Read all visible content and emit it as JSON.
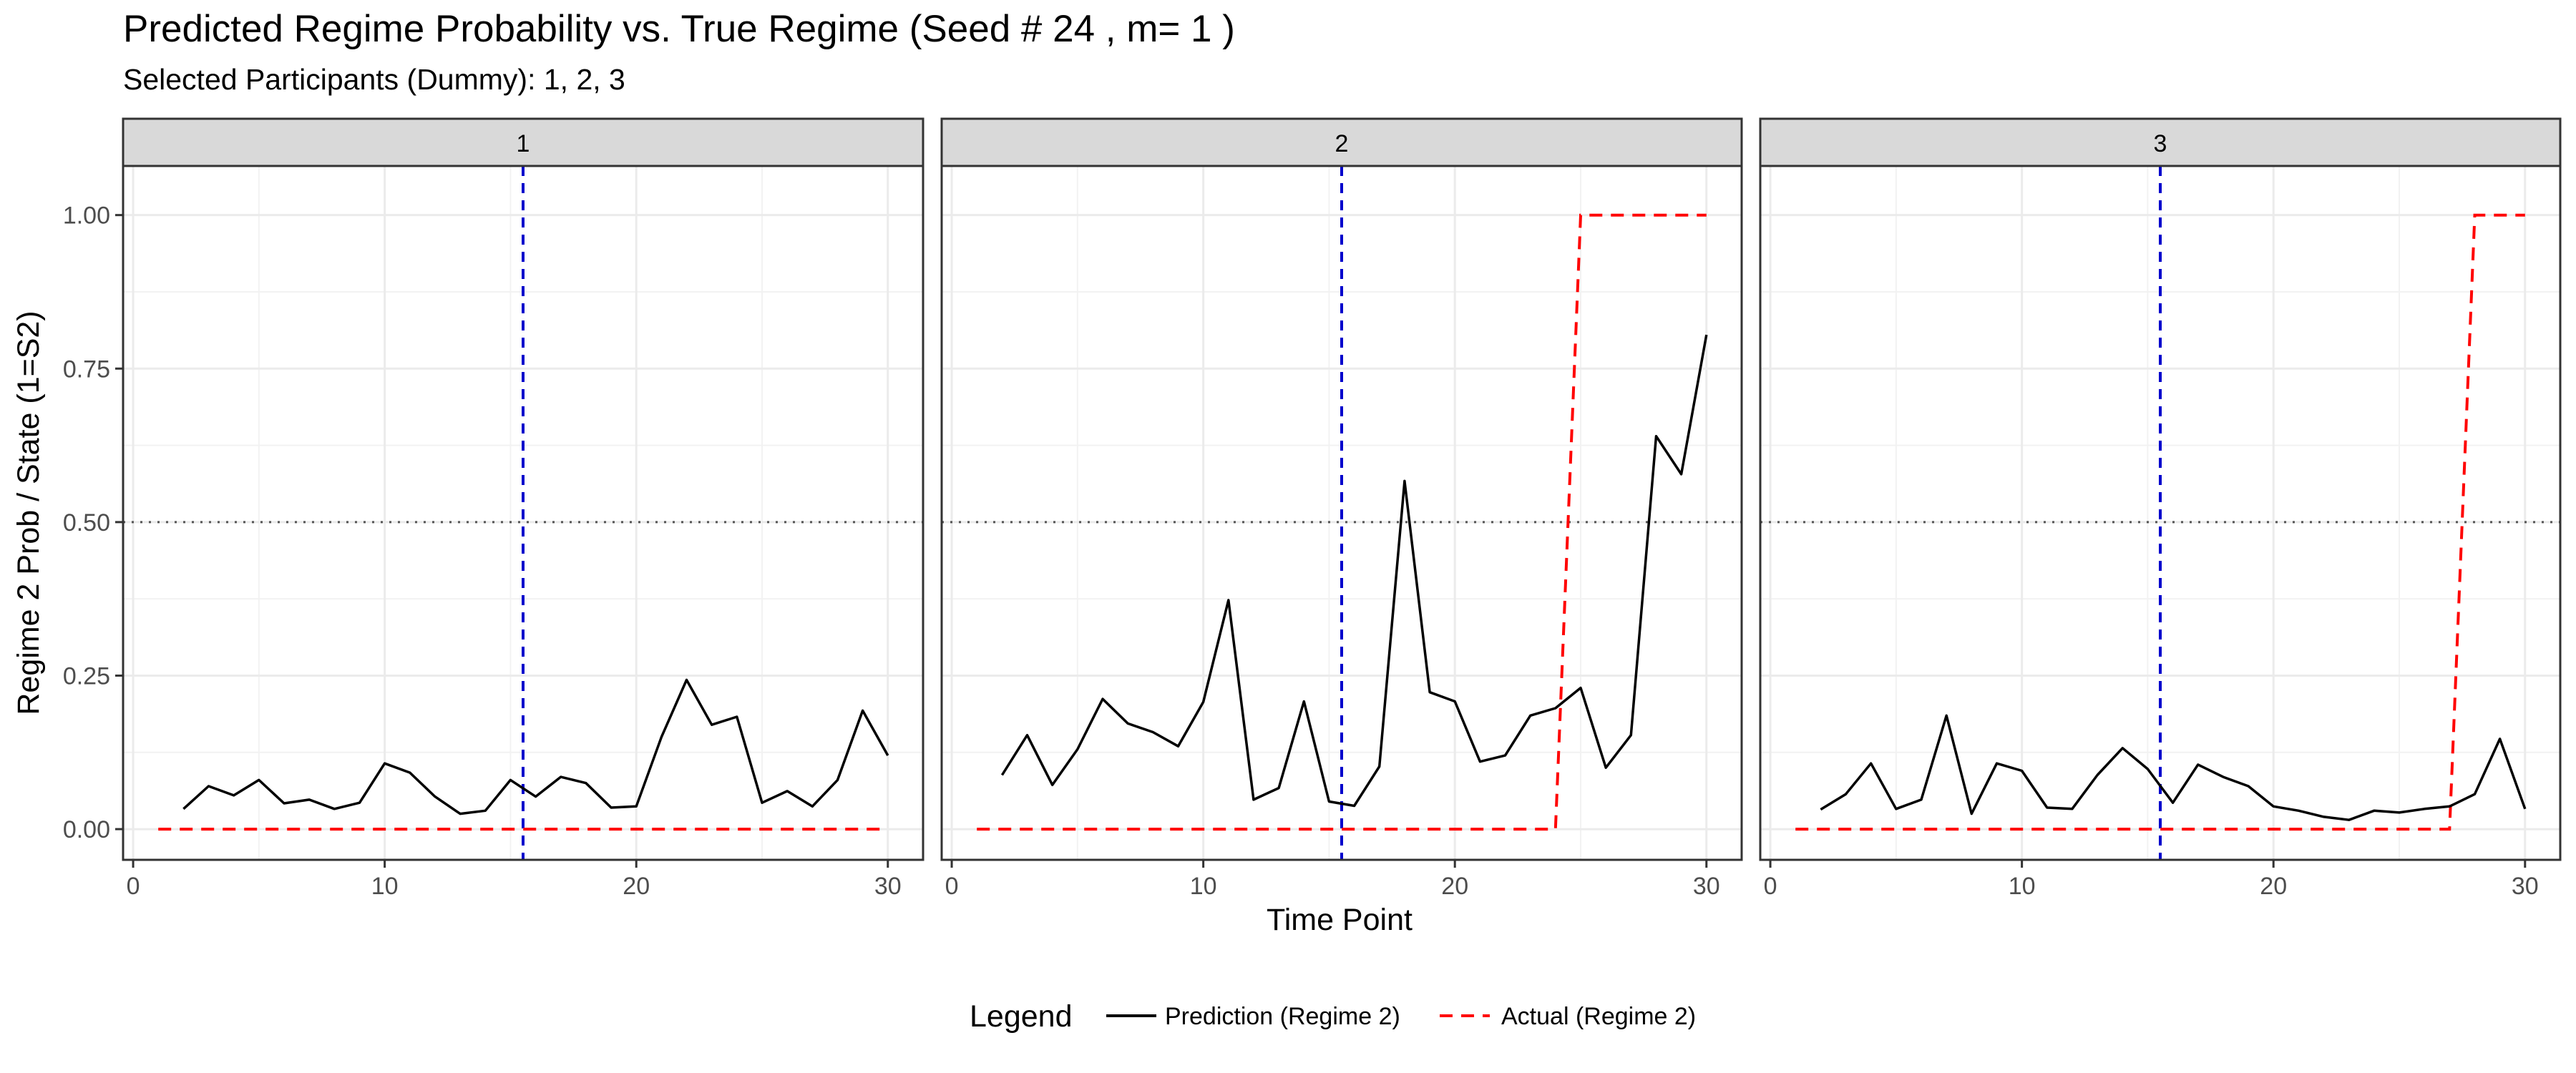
{
  "title": "Predicted Regime Probability vs. True Regime (Seed # 24 , m= 1 )",
  "subtitle": "Selected Participants (Dummy): 1, 2, 3",
  "chart_data": {
    "type": "line",
    "xlabel": "Time Point",
    "ylabel": "Regime 2 Prob / State (1=S2)",
    "xlim": [
      -0.4,
      31.4
    ],
    "ylim": [
      -0.05,
      1.08
    ],
    "xticks": [
      0,
      10,
      20,
      30
    ],
    "yticks": [
      0.0,
      0.25,
      0.5,
      0.75,
      1.0
    ],
    "ytick_labels": [
      "0.00",
      "0.25",
      "0.50",
      "0.75",
      "1.00"
    ],
    "grid": true,
    "vline_x": 15.5,
    "hline_y": 0.5,
    "legend": {
      "title": "Legend",
      "position": "bottom",
      "entries": [
        "Prediction (Regime 2)",
        "Actual (Regime 2)"
      ]
    },
    "colors": {
      "prediction": "#000000",
      "actual": "#ff0000",
      "vline": "#0000cc",
      "hline": "#555555",
      "strip_bg": "#d9d9d9"
    },
    "panels": [
      {
        "label": "1",
        "prediction": {
          "x": [
            2,
            3,
            4,
            5,
            6,
            7,
            8,
            9,
            10,
            11,
            12,
            13,
            14,
            15,
            16,
            17,
            18,
            19,
            20,
            21,
            22,
            23,
            24,
            25,
            26,
            27,
            28,
            29,
            30
          ],
          "y": [
            0.033,
            0.07,
            0.055,
            0.08,
            0.042,
            0.048,
            0.033,
            0.043,
            0.107,
            0.092,
            0.053,
            0.025,
            0.03,
            0.08,
            0.053,
            0.085,
            0.075,
            0.035,
            0.037,
            0.15,
            0.243,
            0.17,
            0.183,
            0.043,
            0.062,
            0.037,
            0.08,
            0.193,
            0.12
          ]
        },
        "actual": {
          "x": [
            1,
            30
          ],
          "y": [
            0,
            0
          ]
        }
      },
      {
        "label": "2",
        "prediction": {
          "x": [
            2,
            3,
            4,
            5,
            6,
            7,
            8,
            9,
            10,
            11,
            12,
            13,
            14,
            15,
            16,
            17,
            18,
            19,
            20,
            21,
            22,
            23,
            24,
            25,
            26,
            27,
            28,
            29,
            30
          ],
          "y": [
            0.088,
            0.153,
            0.072,
            0.13,
            0.212,
            0.172,
            0.158,
            0.135,
            0.207,
            0.373,
            0.048,
            0.067,
            0.208,
            0.045,
            0.038,
            0.102,
            0.567,
            0.223,
            0.208,
            0.11,
            0.12,
            0.185,
            0.197,
            0.23,
            0.1,
            0.153,
            0.64,
            0.578,
            0.805
          ]
        },
        "actual": {
          "x": [
            1,
            24,
            25,
            30
          ],
          "y": [
            0,
            0,
            1,
            1
          ]
        }
      },
      {
        "label": "3",
        "prediction": {
          "x": [
            2,
            3,
            4,
            5,
            6,
            7,
            8,
            9,
            10,
            11,
            12,
            13,
            14,
            15,
            16,
            17,
            18,
            19,
            20,
            21,
            22,
            23,
            24,
            25,
            26,
            27,
            28,
            29,
            30
          ],
          "y": [
            0.032,
            0.057,
            0.107,
            0.033,
            0.048,
            0.185,
            0.025,
            0.107,
            0.095,
            0.035,
            0.033,
            0.088,
            0.132,
            0.098,
            0.043,
            0.105,
            0.085,
            0.07,
            0.037,
            0.03,
            0.02,
            0.015,
            0.03,
            0.027,
            0.033,
            0.037,
            0.057,
            0.147,
            0.033
          ]
        },
        "actual": {
          "x": [
            1,
            27,
            28,
            30
          ],
          "y": [
            0,
            0,
            1,
            1
          ]
        }
      }
    ]
  }
}
